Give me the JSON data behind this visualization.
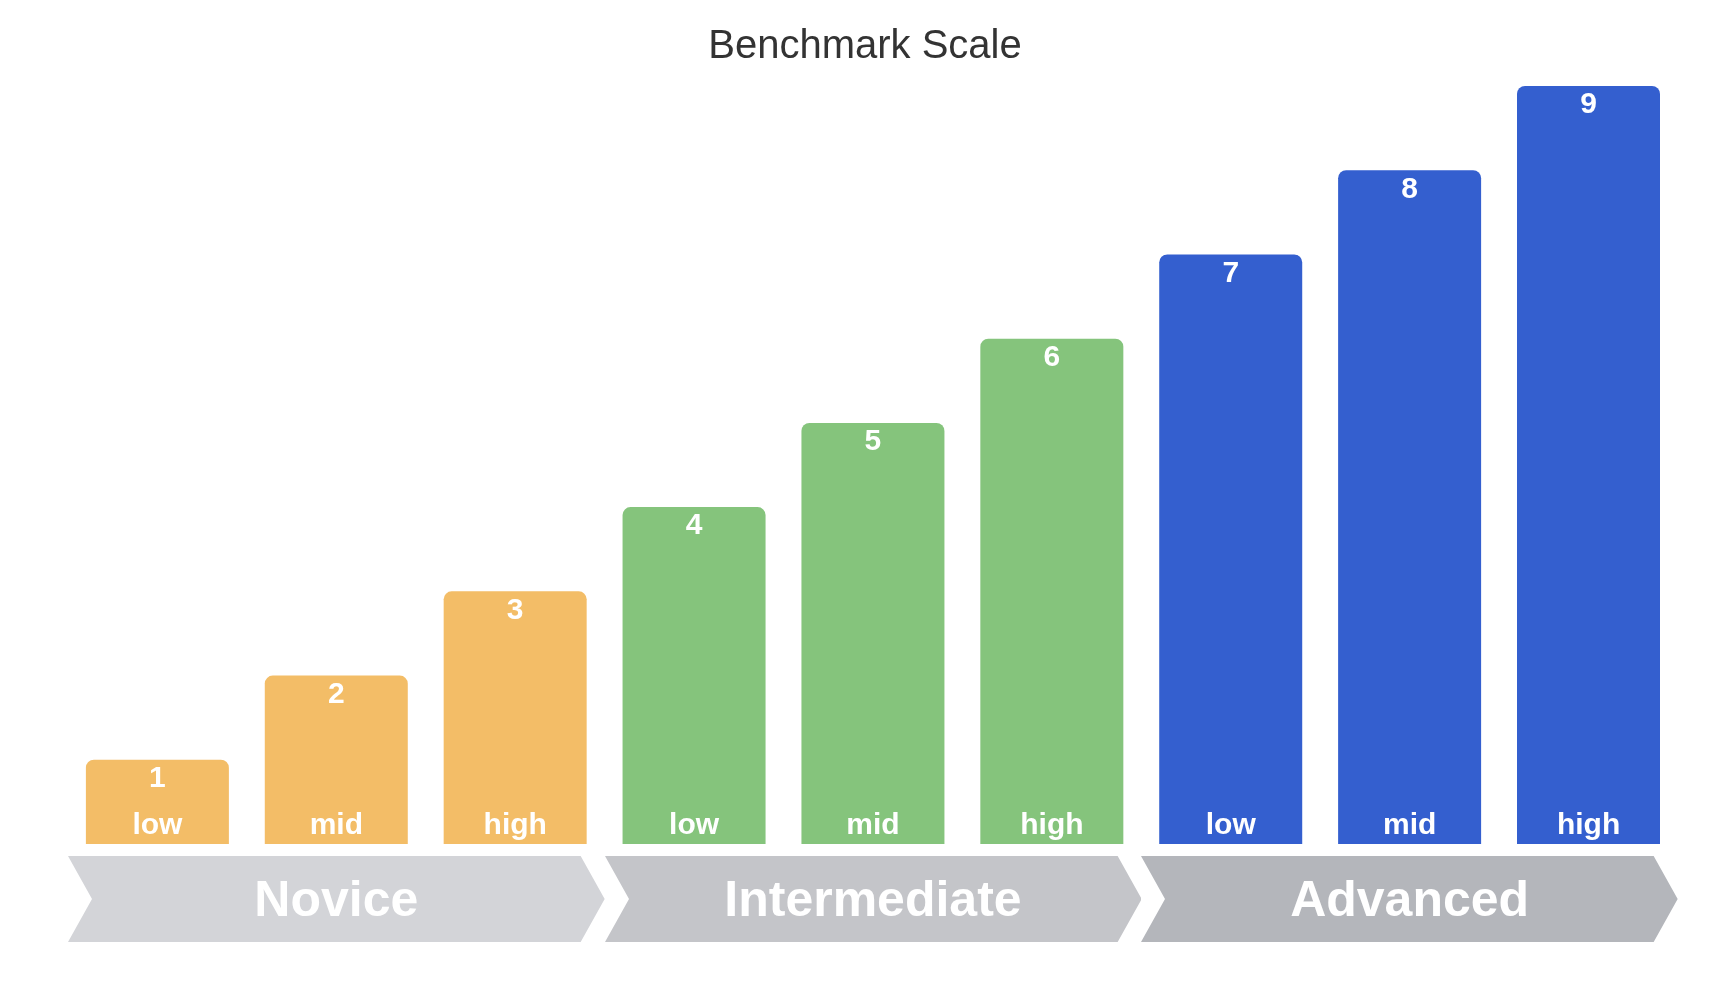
{
  "chart_data": {
    "type": "bar",
    "title": "Benchmark Scale",
    "categories": [
      "low",
      "mid",
      "high",
      "low",
      "mid",
      "high",
      "low",
      "mid",
      "high"
    ],
    "values": [
      1,
      2,
      3,
      4,
      5,
      6,
      7,
      8,
      9
    ],
    "colors": [
      "#f3bd67",
      "#f3bd67",
      "#f3bd67",
      "#85c47c",
      "#85c47c",
      "#85c47c",
      "#345fcf",
      "#345fcf",
      "#345fcf"
    ],
    "data_labels": true,
    "annotations": [
      "Novice",
      "Intermediate",
      "Advanced"
    ]
  }
}
